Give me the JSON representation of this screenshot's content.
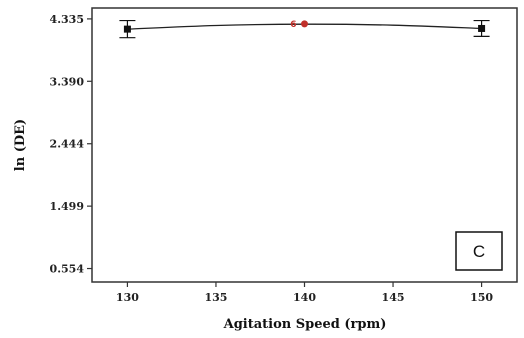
{
  "chart_data": {
    "type": "scatter",
    "xlabel": "Agitation Speed (rpm)",
    "ylabel": "ln (DE)",
    "xlim": [
      128,
      152
    ],
    "ylim": [
      0.35,
      4.5
    ],
    "x_ticks": [
      {
        "value": 130,
        "label": "130"
      },
      {
        "value": 135,
        "label": "135"
      },
      {
        "value": 140,
        "label": "140"
      },
      {
        "value": 145,
        "label": "145"
      },
      {
        "value": 150,
        "label": "150"
      }
    ],
    "y_ticks": [
      {
        "value": 0.554,
        "label": "0.554"
      },
      {
        "value": 1.499,
        "label": "1.499"
      },
      {
        "value": 2.444,
        "label": "2.444"
      },
      {
        "value": 3.39,
        "label": "3.390"
      },
      {
        "value": 4.335,
        "label": "4.335"
      }
    ],
    "points": [
      {
        "x": 130,
        "y": 4.18,
        "err_low": 4.05,
        "err_high": 4.31
      },
      {
        "x": 150,
        "y": 4.19,
        "err_low": 4.07,
        "err_high": 4.31
      }
    ],
    "center_point": {
      "x": 140,
      "y": 4.26,
      "label": "6"
    },
    "fit_curve": [
      {
        "x": 130,
        "y": 4.18
      },
      {
        "x": 135,
        "y": 4.235
      },
      {
        "x": 140,
        "y": 4.255
      },
      {
        "x": 145,
        "y": 4.24
      },
      {
        "x": 150,
        "y": 4.19
      }
    ],
    "panel_label": "C",
    "grid": false,
    "colors": {
      "axis": "#333333",
      "curve": "#222222",
      "point": "#111111",
      "center_point": "#c0302a",
      "center_label": "#c0302a"
    }
  }
}
